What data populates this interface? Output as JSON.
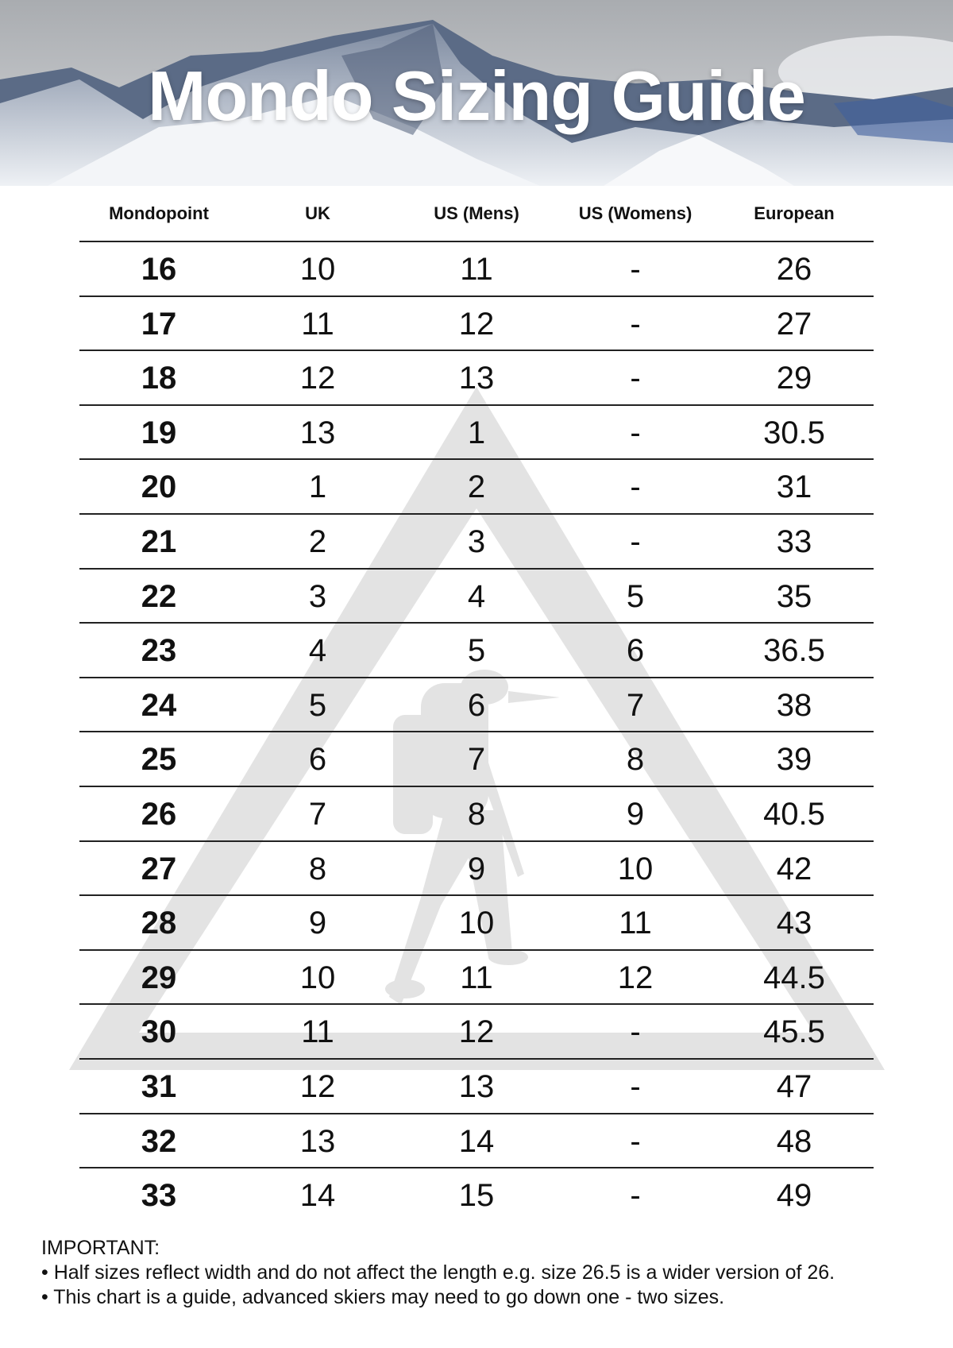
{
  "title": "Mondo Sizing Guide",
  "table": {
    "headers": [
      "Mondopoint",
      "UK",
      "US (Mens)",
      "US (Womens)",
      "European"
    ],
    "rows": [
      [
        "16",
        "10",
        "11",
        "-",
        "26"
      ],
      [
        "17",
        "11",
        "12",
        "-",
        "27"
      ],
      [
        "18",
        "12",
        "13",
        "-",
        "29"
      ],
      [
        "19",
        "13",
        "1",
        "-",
        "30.5"
      ],
      [
        "20",
        "1",
        "2",
        "-",
        "31"
      ],
      [
        "21",
        "2",
        "3",
        "-",
        "33"
      ],
      [
        "22",
        "3",
        "4",
        "5",
        "35"
      ],
      [
        "23",
        "4",
        "5",
        "6",
        "36.5"
      ],
      [
        "24",
        "5",
        "6",
        "7",
        "38"
      ],
      [
        "25",
        "6",
        "7",
        "8",
        "39"
      ],
      [
        "26",
        "7",
        "8",
        "9",
        "40.5"
      ],
      [
        "27",
        "8",
        "9",
        "10",
        "42"
      ],
      [
        "28",
        "9",
        "10",
        "11",
        "43"
      ],
      [
        "29",
        "10",
        "11",
        "12",
        "44.5"
      ],
      [
        "30",
        "11",
        "12",
        "-",
        "45.5"
      ],
      [
        "31",
        "12",
        "13",
        "-",
        "47"
      ],
      [
        "32",
        "13",
        "14",
        "-",
        "48"
      ],
      [
        "33",
        "14",
        "15",
        "-",
        "49"
      ]
    ]
  },
  "notes": {
    "heading": "IMPORTANT:",
    "items": [
      "• Half sizes reflect width and do not affect the length e.g. size 26.5 is a wider version of 26.",
      "• This chart is a guide, advanced skiers may need to go down one - two sizes."
    ]
  },
  "colors": {
    "watermark": "#e3e3e3",
    "rule": "#222222",
    "title": "#ffffff"
  },
  "icons": {
    "watermark": "triangle-hiker-logo-icon",
    "banner": "snowy-mountain-image"
  }
}
